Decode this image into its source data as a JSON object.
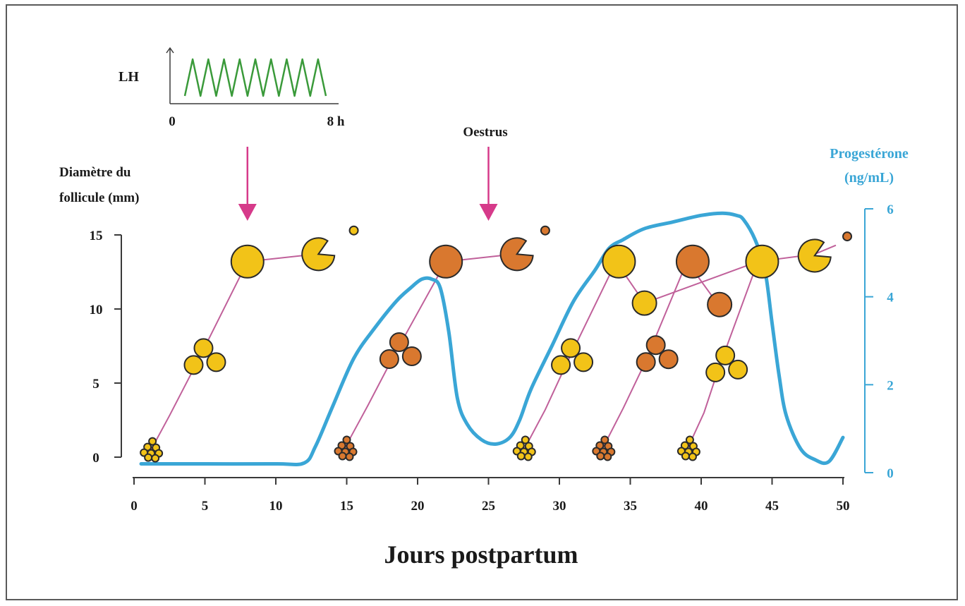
{
  "chart_data": {
    "type": "line",
    "x_axis": {
      "label": "Jours postpartum",
      "range": [
        0,
        50
      ],
      "ticks": [
        0,
        5,
        10,
        15,
        20,
        25,
        30,
        35,
        40,
        45,
        50
      ]
    },
    "y_axis_left": {
      "label_line1": "Diamètre du",
      "label_line2": "follicule (mm)",
      "range": [
        0,
        15
      ],
      "ticks": [
        0,
        5,
        10,
        15
      ]
    },
    "y_axis_right": {
      "label_line1": "Progestérone",
      "label_line2": "(ng/mL)",
      "range": [
        0,
        6
      ],
      "ticks": [
        0,
        2,
        4,
        6
      ],
      "color": "#3aa6d6"
    },
    "inset": {
      "label": "LH",
      "x_start": "0",
      "x_end": "8 h",
      "pulses": 9,
      "color": "#3a9a3a"
    },
    "annotations": [
      {
        "text": "Oestrus",
        "x": 25
      },
      {
        "text": "",
        "x": 8
      }
    ],
    "arrow_color": "#d63a8a",
    "series": [
      {
        "name": "Progestérone",
        "axis": "right",
        "color": "#3aa6d6",
        "x": [
          0.5,
          5,
          10,
          12,
          12.8,
          14,
          15.5,
          17,
          18.5,
          19.5,
          20.3,
          21,
          21.6,
          22.2,
          22.8,
          23.5,
          24.5,
          25.5,
          26.5,
          27.2,
          28,
          29.5,
          31,
          32.5,
          33.5,
          34.5,
          36,
          38,
          40,
          41.5,
          42.5,
          43,
          43.8,
          44.5,
          45,
          45.5,
          46,
          47,
          48,
          49,
          50
        ],
        "y": [
          0.2,
          0.2,
          0.2,
          0.22,
          0.6,
          1.5,
          2.6,
          3.3,
          3.9,
          4.2,
          4.4,
          4.4,
          4.2,
          3.2,
          1.7,
          1.1,
          0.75,
          0.65,
          0.8,
          1.2,
          1.9,
          2.9,
          3.9,
          4.6,
          5.1,
          5.3,
          5.55,
          5.7,
          5.85,
          5.9,
          5.85,
          5.75,
          5.3,
          4.6,
          3.4,
          2.2,
          1.3,
          0.55,
          0.3,
          0.25,
          0.8
        ]
      },
      {
        "name": "wave1",
        "axis": "left",
        "color": "#c0609a",
        "x": [
          1.2,
          2.5,
          4.5,
          8,
          12.8
        ],
        "y": [
          0.5,
          2.8,
          6.5,
          13.2,
          13.7
        ]
      },
      {
        "name": "wave2",
        "axis": "left",
        "color": "#c0609a",
        "x": [
          14.8,
          16.5,
          18.3,
          22,
          26.8
        ],
        "y": [
          0.5,
          3.5,
          6.8,
          13.2,
          13.7
        ]
      },
      {
        "name": "wave3",
        "axis": "left",
        "color": "#c0609a",
        "x": [
          27.5,
          29,
          30.5,
          34,
          36,
          44,
          48,
          49.5
        ],
        "y": [
          0.5,
          3.2,
          6.3,
          13.2,
          10.4,
          13.2,
          13.7,
          14.3
        ]
      },
      {
        "name": "wave4",
        "axis": "left",
        "color": "#c0609a",
        "x": [
          33,
          34.5,
          36,
          39,
          41.2
        ],
        "y": [
          0.5,
          3.3,
          6.3,
          13.2,
          10.3
        ]
      },
      {
        "name": "wave5",
        "axis": "left",
        "color": "#c0609a",
        "x": [
          39,
          40.2,
          41.2,
          44
        ],
        "y": [
          0.5,
          3,
          5.9,
          13.2
        ]
      }
    ],
    "follicles": [
      {
        "x": 1.3,
        "y": 0.4,
        "kind": "cluster",
        "color": "yellow"
      },
      {
        "x": 4.7,
        "y": 6.6,
        "kind": "triple",
        "color": "yellow"
      },
      {
        "x": 8,
        "y": 13.2,
        "kind": "large",
        "color": "yellow"
      },
      {
        "x": 13,
        "y": 13.7,
        "kind": "regressing",
        "color": "yellow"
      },
      {
        "x": 15.5,
        "y": 15.3,
        "kind": "dot",
        "color": "yellow"
      },
      {
        "x": 15,
        "y": 0.5,
        "kind": "cluster",
        "color": "orange"
      },
      {
        "x": 18.5,
        "y": 7,
        "kind": "triple",
        "color": "orange"
      },
      {
        "x": 22,
        "y": 13.2,
        "kind": "large",
        "color": "orange"
      },
      {
        "x": 27,
        "y": 13.7,
        "kind": "regressing",
        "color": "orange"
      },
      {
        "x": 29,
        "y": 15.3,
        "kind": "dot",
        "color": "orange"
      },
      {
        "x": 27.6,
        "y": 0.5,
        "kind": "cluster",
        "color": "yellow"
      },
      {
        "x": 30.6,
        "y": 6.6,
        "kind": "triple",
        "color": "yellow"
      },
      {
        "x": 34.2,
        "y": 13.2,
        "kind": "large",
        "color": "yellow"
      },
      {
        "x": 36,
        "y": 10.4,
        "kind": "medium",
        "color": "yellow"
      },
      {
        "x": 33.2,
        "y": 0.5,
        "kind": "cluster",
        "color": "orange"
      },
      {
        "x": 36.6,
        "y": 6.8,
        "kind": "triple",
        "color": "orange"
      },
      {
        "x": 39.4,
        "y": 13.2,
        "kind": "large",
        "color": "orange"
      },
      {
        "x": 41.3,
        "y": 10.3,
        "kind": "medium",
        "color": "orange"
      },
      {
        "x": 39.2,
        "y": 0.5,
        "kind": "cluster",
        "color": "yellow"
      },
      {
        "x": 41.5,
        "y": 6.1,
        "kind": "triple",
        "color": "yellow"
      },
      {
        "x": 44.3,
        "y": 13.2,
        "kind": "large",
        "color": "yellow"
      },
      {
        "x": 48,
        "y": 13.6,
        "kind": "regressing",
        "color": "yellow"
      },
      {
        "x": 50.3,
        "y": 14.9,
        "kind": "dot",
        "color": "orange"
      }
    ]
  }
}
